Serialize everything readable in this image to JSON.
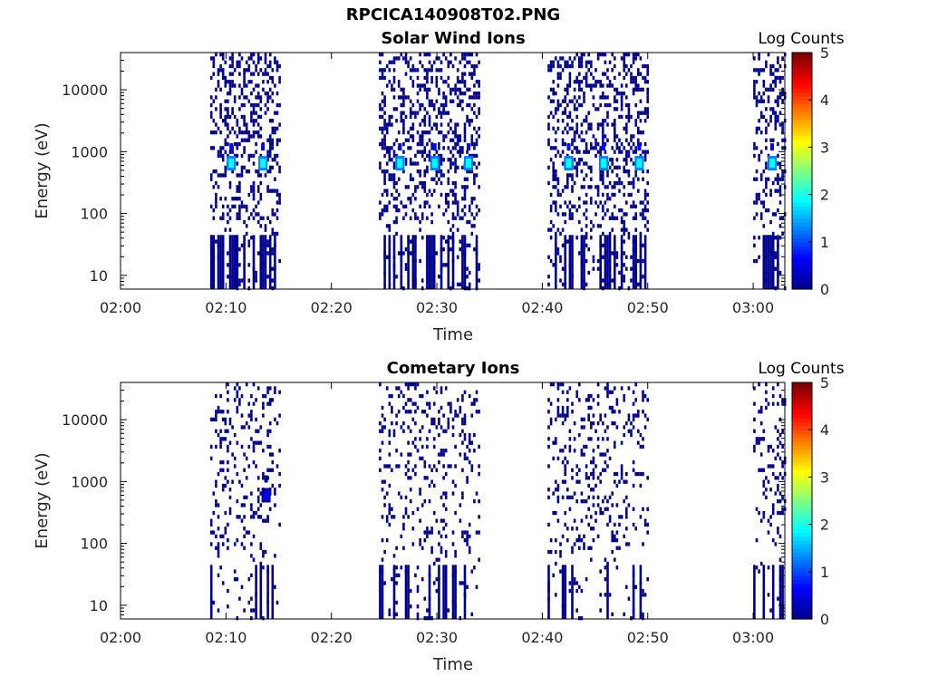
{
  "figure": {
    "title": "RPCICA140908T02.PNG"
  },
  "colormap": [
    "#00008f",
    "#0000ff",
    "#0080ff",
    "#00ffff",
    "#80ff80",
    "#ffff00",
    "#ff8000",
    "#ff0000",
    "#800000"
  ],
  "chart_data": [
    {
      "type": "heatmap",
      "title": "Solar Wind Ions",
      "xlabel": "Time",
      "ylabel": "Energy (eV)",
      "y_scale": "log",
      "xlim": [
        "02:00",
        "03:03"
      ],
      "ylim": [
        6,
        40000
      ],
      "x_ticks": [
        "02:00",
        "02:10",
        "02:20",
        "02:30",
        "02:40",
        "02:50",
        "03:00"
      ],
      "y_ticks": [
        "10",
        "100",
        "1000",
        "10000"
      ],
      "colorbar": {
        "label": "Log Counts",
        "range": [
          0,
          5
        ],
        "ticks": [
          "0",
          "1",
          "2",
          "3",
          "4",
          "5"
        ]
      },
      "active_intervals": [
        {
          "start": "02:08.5",
          "end": "02:15.0"
        },
        {
          "start": "02:24.5",
          "end": "02:34.0"
        },
        {
          "start": "02:40.5",
          "end": "02:50.0"
        },
        {
          "start": "03:00.0",
          "end": "03:03.0"
        }
      ],
      "peaks": [
        {
          "time": "02:10.5",
          "energy_eV": 650,
          "log_counts": 1.8
        },
        {
          "time": "02:13.5",
          "energy_eV": 650,
          "log_counts": 1.8
        },
        {
          "time": "02:26.5",
          "energy_eV": 650,
          "log_counts": 1.6
        },
        {
          "time": "02:29.8",
          "energy_eV": 650,
          "log_counts": 1.6
        },
        {
          "time": "02:33.0",
          "energy_eV": 650,
          "log_counts": 1.7
        },
        {
          "time": "02:42.5",
          "energy_eV": 650,
          "log_counts": 1.8
        },
        {
          "time": "02:45.8",
          "energy_eV": 650,
          "log_counts": 1.7
        },
        {
          "time": "02:49.2",
          "energy_eV": 650,
          "log_counts": 1.8
        },
        {
          "time": "03:01.8",
          "energy_eV": 650,
          "log_counts": 1.8
        }
      ]
    },
    {
      "type": "heatmap",
      "title": "Cometary Ions",
      "xlabel": "Time",
      "ylabel": "Energy (eV)",
      "y_scale": "log",
      "xlim": [
        "02:00",
        "03:03"
      ],
      "ylim": [
        6,
        40000
      ],
      "x_ticks": [
        "02:00",
        "02:10",
        "02:20",
        "02:30",
        "02:40",
        "02:50",
        "03:00"
      ],
      "y_ticks": [
        "10",
        "100",
        "1000",
        "10000"
      ],
      "colorbar": {
        "label": "Log Counts",
        "range": [
          0,
          5
        ],
        "ticks": [
          "0",
          "1",
          "2",
          "3",
          "4",
          "5"
        ]
      },
      "active_intervals": [
        {
          "start": "02:08.5",
          "end": "02:15.0"
        },
        {
          "start": "02:24.5",
          "end": "02:34.0"
        },
        {
          "start": "02:40.5",
          "end": "02:50.0"
        },
        {
          "start": "03:00.0",
          "end": "03:03.0"
        }
      ],
      "peaks": [
        {
          "time": "02:13.8",
          "energy_eV": 600,
          "log_counts": 0.5
        }
      ]
    }
  ]
}
